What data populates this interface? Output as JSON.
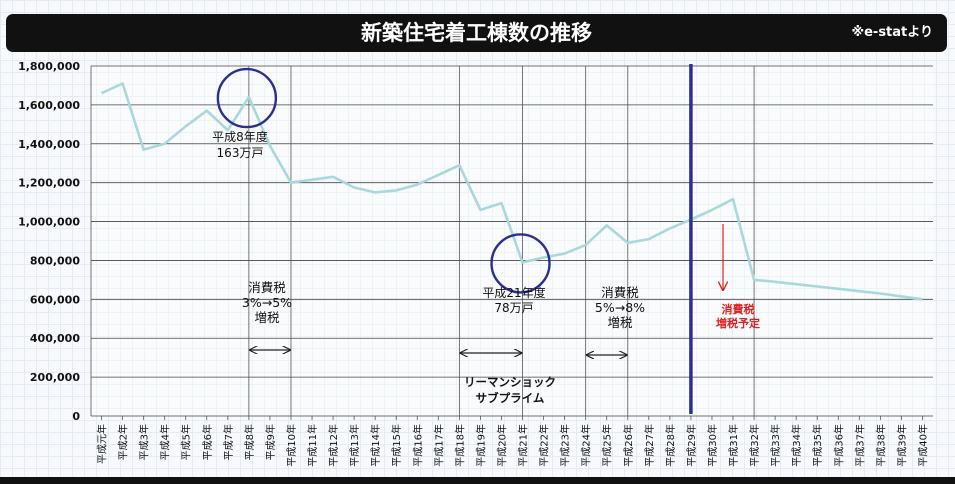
{
  "title": "新築住宅着工棟数の推移",
  "source_note": "※e-statより",
  "colors": {
    "title_bar": "#111111",
    "line": "#a8d8dc",
    "marker_line": "#2b2f8f",
    "circle": "#2b2f8f",
    "tax_forecast": "#e02020",
    "grid": "#444444"
  },
  "chart_data": {
    "type": "line",
    "title": "新築住宅着工棟数の推移",
    "xlabel": "",
    "ylabel": "",
    "ylim": [
      0,
      1800000
    ],
    "yticks": [
      0,
      200000,
      400000,
      600000,
      800000,
      1000000,
      1200000,
      1400000,
      1600000,
      1800000
    ],
    "ytick_labels": [
      "0",
      "200,000",
      "400,000",
      "600,000",
      "800,000",
      "1,000,000",
      "1,200,000",
      "1,400,000",
      "1,600,000",
      "1,800,000"
    ],
    "grid": true,
    "categories": [
      "平成元年",
      "平成2年",
      "平成3年",
      "平成4年",
      "平成5年",
      "平成6年",
      "平成7年",
      "平成8年",
      "平成9年",
      "平成10年",
      "平成11年",
      "平成12年",
      "平成13年",
      "平成14年",
      "平成15年",
      "平成16年",
      "平成17年",
      "平成18年",
      "平成19年",
      "平成20年",
      "平成21年",
      "平成22年",
      "平成23年",
      "平成24年",
      "平成25年",
      "平成26年",
      "平成27年",
      "平成28年",
      "平成29年",
      "平成30年",
      "平成31年",
      "平成32年",
      "平成33年",
      "平成34年",
      "平成35年",
      "平成36年",
      "平成37年",
      "平成38年",
      "平成39年",
      "平成40年"
    ],
    "series": [
      {
        "values": [
          1660000,
          1710000,
          1370000,
          1400000,
          1490000,
          1570000,
          1470000,
          1640000,
          1390000,
          1200000,
          1215000,
          1230000,
          1175000,
          1150000,
          1160000,
          1190000,
          1240000,
          1290000,
          1060000,
          1095000,
          790000,
          815000,
          835000,
          880000,
          980000,
          890000,
          910000,
          965000,
          1010000,
          1060000,
          1115000,
          700000,
          690000,
          678000,
          666000,
          654000,
          642000,
          630000,
          615000,
          600000
        ]
      }
    ],
    "vertical_gridlines_at": [
      "平成8年",
      "平成10年",
      "平成18年",
      "平成21年",
      "平成24年",
      "平成26年",
      "平成32年"
    ],
    "present_marker_at": "平成29年",
    "circles_at": [
      "平成8年",
      "平成21年"
    ],
    "range_arrows": [
      {
        "from": "平成8年",
        "to": "平成10年"
      },
      {
        "from": "平成18年",
        "to": "平成21年"
      },
      {
        "from": "平成24年",
        "to": "平成26年"
      }
    ],
    "annotations": {
      "h8_peak": [
        "平成8年度",
        "163万戸"
      ],
      "h21_low": [
        "平成21年度",
        "78万戸"
      ],
      "tax_1997": [
        "消費税",
        "3%→5%",
        "増税"
      ],
      "tax_2014": [
        "消費税",
        "5%→8%",
        "増税"
      ],
      "lehman": [
        "リーマンショック",
        "サブプライム"
      ],
      "tax_forecast": [
        "消費税",
        "増税予定"
      ]
    }
  }
}
